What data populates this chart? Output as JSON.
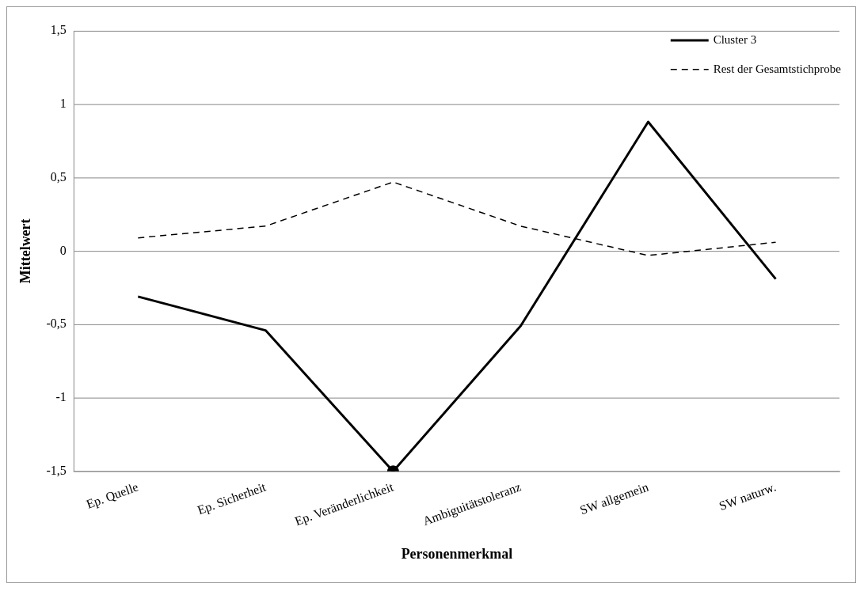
{
  "chart_data": {
    "type": "line",
    "xlabel": "Personenmerkmal",
    "ylabel": "Mittelwert",
    "categories": [
      "Ep. Quelle",
      "Ep. Sicherheit",
      "Ep. Veränderlichkeit",
      "Ambiguitätstoleranz",
      "SW allgemein",
      "SW naturw."
    ],
    "series": [
      {
        "name": "Cluster 3",
        "color": "#000000",
        "values": [
          -0.31,
          -0.54,
          -1.5,
          -0.51,
          0.88,
          -0.19
        ],
        "line_style": "solid",
        "marker": "none"
      },
      {
        "name": "Rest der Gesamtstichprobe",
        "color": "#000000",
        "values": [
          0.09,
          0.17,
          0.47,
          0.17,
          -0.03,
          0.06
        ],
        "line_style": "dashed",
        "marker": "none"
      },
      {
        "type": "scatter",
        "color": "#000000",
        "x": [
          "Ep. Veränderlichkeit"
        ],
        "values": [
          -1.5
        ],
        "marker": "circle"
      }
    ],
    "ylim": [
      -1.5,
      1.5
    ],
    "yticks": [
      {
        "value": -1.5,
        "label": "-1,5"
      },
      {
        "value": -1,
        "label": "-1"
      },
      {
        "value": -0.5,
        "label": "-0,5"
      },
      {
        "value": 0,
        "label": "0"
      },
      {
        "value": 0.5,
        "label": "0,5"
      },
      {
        "value": 1,
        "label": "1"
      },
      {
        "value": 1.5,
        "label": "1,5"
      }
    ],
    "grid": "y",
    "legend": "top right"
  }
}
